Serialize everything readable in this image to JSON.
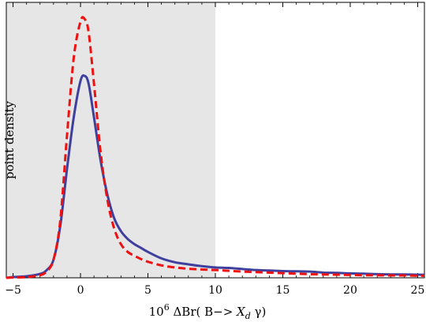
{
  "chart_data": {
    "type": "line",
    "title": "",
    "xlabel": "10^6 ΔBr(B−> X_d γ)",
    "xlabel_parts": {
      "base": "10",
      "exp": "6",
      "mid": " ΔBr( B−> ",
      "var": "X",
      "sub": "d",
      "end": " γ)"
    },
    "ylabel": "point  density",
    "xlim": [
      -5.5,
      25.5
    ],
    "ylim": [
      0,
      1.0
    ],
    "xticks": [
      -5,
      0,
      5,
      10,
      15,
      20,
      25
    ],
    "xtick_labels": [
      "−5",
      "0",
      "5",
      "10",
      "15",
      "20",
      "25"
    ],
    "grid": false,
    "legend": "none",
    "shaded_region": {
      "x_from": -5.5,
      "x_to": 10,
      "color": "#e6e6e6"
    },
    "series": [
      {
        "style": "solid",
        "color": "#3f3f9e",
        "x": [
          -5.5,
          -5,
          -4,
          -3,
          -2.5,
          -2,
          -1.5,
          -1,
          -0.5,
          0,
          0.3,
          0.6,
          1,
          1.5,
          2,
          2.5,
          3,
          3.5,
          4,
          4.5,
          5,
          6,
          7,
          8,
          9,
          10,
          11,
          12,
          13,
          14,
          15,
          16,
          17,
          18,
          19,
          20,
          21,
          22,
          23,
          24,
          25,
          25.5
        ],
        "y": [
          0.0,
          0.003,
          0.006,
          0.015,
          0.03,
          0.07,
          0.2,
          0.42,
          0.62,
          0.76,
          0.78,
          0.75,
          0.62,
          0.45,
          0.32,
          0.23,
          0.18,
          0.15,
          0.13,
          0.115,
          0.1,
          0.075,
          0.06,
          0.052,
          0.045,
          0.04,
          0.038,
          0.034,
          0.03,
          0.028,
          0.026,
          0.025,
          0.024,
          0.02,
          0.019,
          0.017,
          0.016,
          0.014,
          0.013,
          0.013,
          0.012,
          0.012
        ]
      },
      {
        "style": "dashed",
        "color": "#ee1111",
        "x": [
          -5.5,
          -5,
          -4,
          -3,
          -2.5,
          -2,
          -1.5,
          -1,
          -0.5,
          0,
          0.3,
          0.6,
          1,
          1.5,
          2,
          2.5,
          3,
          3.5,
          4,
          4.5,
          5,
          6,
          7,
          8,
          9,
          10,
          11,
          12,
          13,
          14,
          15,
          16,
          17,
          18,
          19,
          20,
          21,
          22,
          23,
          24,
          25,
          25.5
        ],
        "y": [
          0.0,
          0.001,
          0.003,
          0.01,
          0.025,
          0.07,
          0.22,
          0.55,
          0.85,
          0.99,
          1.0,
          0.95,
          0.75,
          0.48,
          0.3,
          0.19,
          0.13,
          0.1,
          0.085,
          0.072,
          0.062,
          0.048,
          0.04,
          0.035,
          0.032,
          0.03,
          0.027,
          0.024,
          0.022,
          0.02,
          0.018,
          0.016,
          0.014,
          0.013,
          0.012,
          0.011,
          0.01,
          0.01,
          0.009,
          0.009,
          0.008,
          0.008
        ]
      }
    ]
  }
}
